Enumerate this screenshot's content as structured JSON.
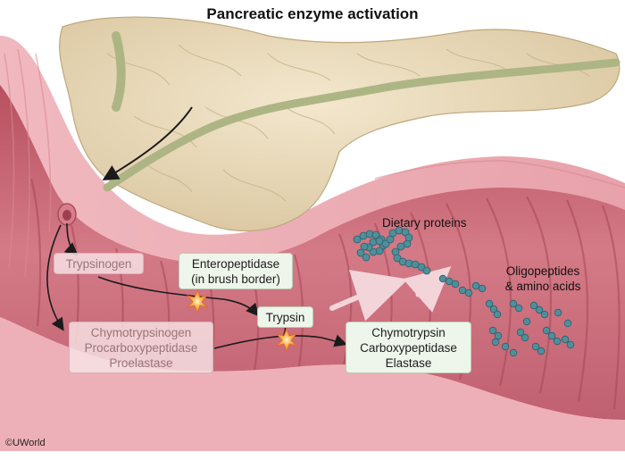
{
  "title": "Pancreatic enzyme activation",
  "labels": {
    "trypsinogen": "Trypsinogen",
    "enteropeptidase_line1": "Enteropeptidase",
    "enteropeptidase_line2": "(in brush border)",
    "trypsin": "Trypsin",
    "zymogens": [
      "Chymotrypsinogen",
      "Procarboxypeptidase",
      "Proelastase"
    ],
    "active_enzymes": [
      "Chymotrypsin",
      "Carboxypeptidase",
      "Elastase"
    ],
    "dietary_proteins": "Dietary proteins",
    "oligopeptides_line1": "Oligopeptides",
    "oligopeptides_line2": "& amino acids"
  },
  "copyright": "©UWorld",
  "colors": {
    "intestine_wall": "#e59aa3",
    "intestine_lumen": "#ce6f7c",
    "pancreas": "#eadbbd",
    "duct": "#b8bd92",
    "protein_beads": "#4f8f9c",
    "active_enzyme_box": "#eef5ea",
    "zymogen_box": "#f8e4e6",
    "activation_burst": "#f29a35"
  }
}
